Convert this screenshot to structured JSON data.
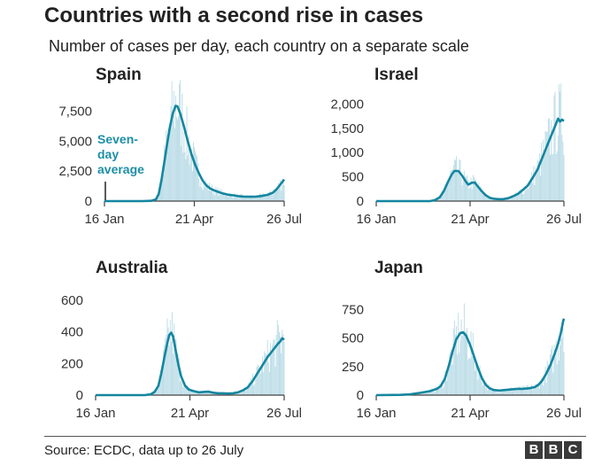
{
  "header": {
    "title": "Countries with a second rise in cases",
    "subtitle": "Number of cases per day, each country on a separate scale"
  },
  "footer": {
    "source": "Source: ECDC, data up to 26 July",
    "logo_letters": [
      "B",
      "B",
      "C"
    ]
  },
  "colors": {
    "line": "#14869f",
    "bars": "#b9dbe6",
    "axis": "#444444",
    "text": "#222222"
  },
  "chart_data": [
    {
      "type": "line",
      "name": "Spain",
      "title": "Spain",
      "annotation": [
        "Seven-",
        "day",
        "average"
      ],
      "x_ticks": [
        "16 Jan",
        "21 Apr",
        "26 Jul"
      ],
      "x_range_days": [
        0,
        192
      ],
      "ylim": [
        0,
        8500
      ],
      "y_ticks": [
        0,
        2500,
        5000,
        7500
      ],
      "y_tick_labels": [
        "0",
        "2,500",
        "5,000",
        "7,500"
      ],
      "series": [
        {
          "name": "Daily cases",
          "kind": "bars",
          "values": []
        },
        {
          "name": "Seven-day average",
          "kind": "line",
          "points": [
            [
              0,
              0
            ],
            [
              40,
              0
            ],
            [
              50,
              20
            ],
            [
              55,
              150
            ],
            [
              58,
              600
            ],
            [
              61,
              1800
            ],
            [
              64,
              3300
            ],
            [
              67,
              4800
            ],
            [
              70,
              6200
            ],
            [
              73,
              7300
            ],
            [
              76,
              7950
            ],
            [
              78,
              7900
            ],
            [
              81,
              7300
            ],
            [
              85,
              6200
            ],
            [
              89,
              5000
            ],
            [
              93,
              3900
            ],
            [
              97,
              3000
            ],
            [
              101,
              2300
            ],
            [
              105,
              1700
            ],
            [
              109,
              1300
            ],
            [
              113,
              1050
            ],
            [
              117,
              900
            ],
            [
              121,
              780
            ],
            [
              126,
              650
            ],
            [
              132,
              530
            ],
            [
              138,
              480
            ],
            [
              144,
              400
            ],
            [
              150,
              370
            ],
            [
              156,
              360
            ],
            [
              162,
              380
            ],
            [
              168,
              430
            ],
            [
              174,
              520
            ],
            [
              180,
              700
            ],
            [
              184,
              1000
            ],
            [
              188,
              1400
            ],
            [
              192,
              1800
            ]
          ]
        }
      ]
    },
    {
      "type": "line",
      "name": "Israel",
      "title": "Israel",
      "x_ticks": [
        "16 Jan",
        "21 Apr",
        "26 Jul"
      ],
      "x_range_days": [
        0,
        192
      ],
      "ylim": [
        0,
        2100
      ],
      "y_ticks": [
        0,
        500,
        1000,
        1500,
        2000
      ],
      "y_tick_labels": [
        "0",
        "500",
        "1,000",
        "1,500",
        "2,000"
      ],
      "series": [
        {
          "name": "Daily cases",
          "kind": "bars",
          "values": []
        },
        {
          "name": "Seven-day average",
          "kind": "line",
          "points": [
            [
              0,
              0
            ],
            [
              55,
              0
            ],
            [
              60,
              20
            ],
            [
              65,
              80
            ],
            [
              69,
              200
            ],
            [
              73,
              380
            ],
            [
              77,
              540
            ],
            [
              80,
              620
            ],
            [
              84,
              620
            ],
            [
              88,
              520
            ],
            [
              91,
              420
            ],
            [
              94,
              340
            ],
            [
              98,
              380
            ],
            [
              101,
              380
            ],
            [
              104,
              300
            ],
            [
              108,
              200
            ],
            [
              112,
              120
            ],
            [
              116,
              70
            ],
            [
              120,
              50
            ],
            [
              125,
              40
            ],
            [
              130,
              40
            ],
            [
              135,
              60
            ],
            [
              140,
              100
            ],
            [
              145,
              150
            ],
            [
              150,
              230
            ],
            [
              155,
              320
            ],
            [
              160,
              480
            ],
            [
              165,
              650
            ],
            [
              170,
              900
            ],
            [
              175,
              1150
            ],
            [
              180,
              1400
            ],
            [
              184,
              1600
            ],
            [
              186,
              1700
            ],
            [
              188,
              1640
            ],
            [
              190,
              1680
            ],
            [
              192,
              1650
            ]
          ]
        }
      ]
    },
    {
      "type": "line",
      "name": "Australia",
      "title": "Australia",
      "x_ticks": [
        "16 Jan",
        "21 Apr",
        "26 Jul"
      ],
      "x_range_days": [
        0,
        192
      ],
      "ylim": [
        0,
        650
      ],
      "y_ticks": [
        0,
        200,
        400,
        600
      ],
      "y_tick_labels": [
        "0",
        "200",
        "400",
        "600"
      ],
      "series": [
        {
          "name": "Daily cases",
          "kind": "bars",
          "values": []
        },
        {
          "name": "Seven-day average",
          "kind": "line",
          "points": [
            [
              0,
              0
            ],
            [
              50,
              0
            ],
            [
              56,
              5
            ],
            [
              60,
              20
            ],
            [
              64,
              60
            ],
            [
              67,
              140
            ],
            [
              70,
              240
            ],
            [
              73,
              330
            ],
            [
              75,
              380
            ],
            [
              77,
              395
            ],
            [
              79,
              370
            ],
            [
              81,
              300
            ],
            [
              84,
              200
            ],
            [
              87,
              120
            ],
            [
              91,
              60
            ],
            [
              95,
              35
            ],
            [
              100,
              25
            ],
            [
              105,
              18
            ],
            [
              110,
              20
            ],
            [
              115,
              22
            ],
            [
              120,
              15
            ],
            [
              125,
              12
            ],
            [
              130,
              12
            ],
            [
              135,
              10
            ],
            [
              140,
              12
            ],
            [
              145,
              18
            ],
            [
              150,
              30
            ],
            [
              155,
              50
            ],
            [
              160,
              90
            ],
            [
              165,
              140
            ],
            [
              170,
              190
            ],
            [
              175,
              240
            ],
            [
              180,
              280
            ],
            [
              185,
              320
            ],
            [
              188,
              340
            ],
            [
              190,
              360
            ],
            [
              192,
              350
            ]
          ]
        }
      ]
    },
    {
      "type": "line",
      "name": "Japan",
      "title": "Japan",
      "x_ticks": [
        "16 Jan",
        "21 Apr",
        "26 Jul"
      ],
      "x_range_days": [
        0,
        192
      ],
      "ylim": [
        0,
        900
      ],
      "y_ticks": [
        0,
        250,
        500,
        750
      ],
      "y_tick_labels": [
        "0",
        "250",
        "500",
        "750"
      ],
      "series": [
        {
          "name": "Daily cases",
          "kind": "bars",
          "values": []
        },
        {
          "name": "Seven-day average",
          "kind": "line",
          "points": [
            [
              0,
              0
            ],
            [
              25,
              2
            ],
            [
              35,
              8
            ],
            [
              45,
              20
            ],
            [
              55,
              35
            ],
            [
              62,
              55
            ],
            [
              66,
              80
            ],
            [
              70,
              140
            ],
            [
              74,
              250
            ],
            [
              78,
              380
            ],
            [
              82,
              490
            ],
            [
              86,
              545
            ],
            [
              89,
              550
            ],
            [
              92,
              520
            ],
            [
              96,
              440
            ],
            [
              100,
              340
            ],
            [
              104,
              240
            ],
            [
              108,
              150
            ],
            [
              112,
              90
            ],
            [
              116,
              60
            ],
            [
              120,
              45
            ],
            [
              126,
              40
            ],
            [
              132,
              45
            ],
            [
              138,
              50
            ],
            [
              144,
              55
            ],
            [
              150,
              55
            ],
            [
              156,
              60
            ],
            [
              162,
              70
            ],
            [
              166,
              90
            ],
            [
              170,
              130
            ],
            [
              174,
              190
            ],
            [
              178,
              260
            ],
            [
              182,
              350
            ],
            [
              186,
              450
            ],
            [
              189,
              550
            ],
            [
              191,
              640
            ],
            [
              192,
              670
            ]
          ]
        }
      ]
    }
  ]
}
